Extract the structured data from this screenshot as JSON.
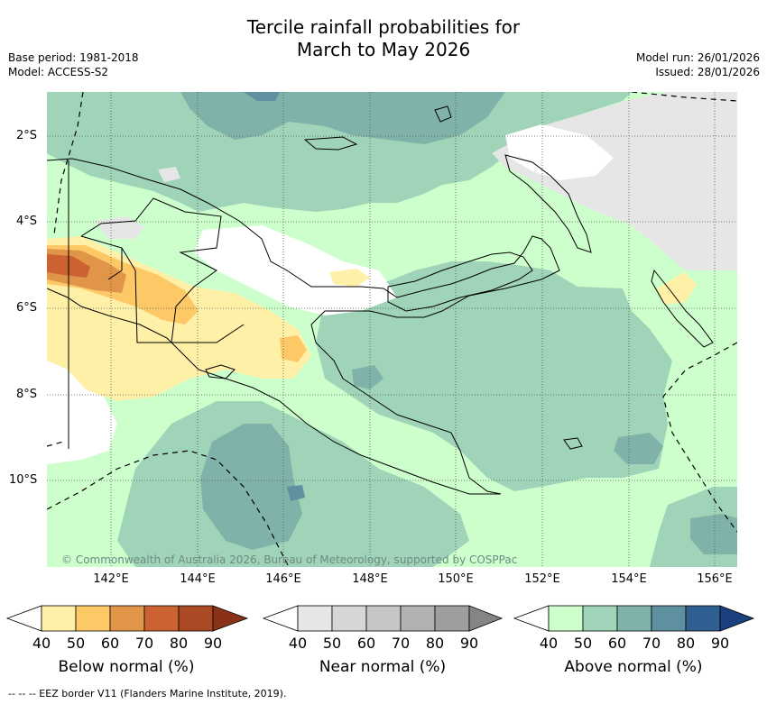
{
  "title_line1": "Tercile rainfall probabilities for",
  "title_line2": "March to May 2026",
  "base_period": "Base period: 1981-2018",
  "model": "Model: ACCESS-S2",
  "model_run": "Model run: 26/01/2026",
  "issued": "Issued: 28/01/2026",
  "copyright": "© Commonwealth of Australia 2026, Bureau of Meteorology, supported by COSPPac",
  "lat_labels": [
    "2°S",
    "4°S",
    "6°S",
    "8°S",
    "10°S"
  ],
  "lon_labels": [
    "142°E",
    "144°E",
    "146°E",
    "148°E",
    "150°E",
    "152°E",
    "154°E",
    "156°E"
  ],
  "colorbars": {
    "below": {
      "label": "Below normal (%)",
      "ticks": [
        "40",
        "50",
        "60",
        "70",
        "80",
        "90"
      ],
      "colors": [
        "#fff0a8",
        "#fdc966",
        "#e09548",
        "#cc6232",
        "#aa4a24",
        "#8a3218"
      ]
    },
    "near": {
      "label": "Near normal (%)",
      "ticks": [
        "40",
        "50",
        "60",
        "70",
        "80",
        "90"
      ],
      "colors": [
        "#e6e6e6",
        "#d6d6d6",
        "#c6c6c6",
        "#b2b2b2",
        "#9e9e9e",
        "#858585"
      ]
    },
    "above": {
      "label": "Above normal (%)",
      "ticks": [
        "40",
        "50",
        "60",
        "70",
        "80",
        "90"
      ],
      "colors": [
        "#ccffcc",
        "#a0d4b8",
        "#7fb3aa",
        "#5e90a0",
        "#2f5f90",
        "#1a4080"
      ]
    }
  },
  "footnote": "--  --  -- EEZ border V11 (Flanders Marine Institute, 2019)."
}
